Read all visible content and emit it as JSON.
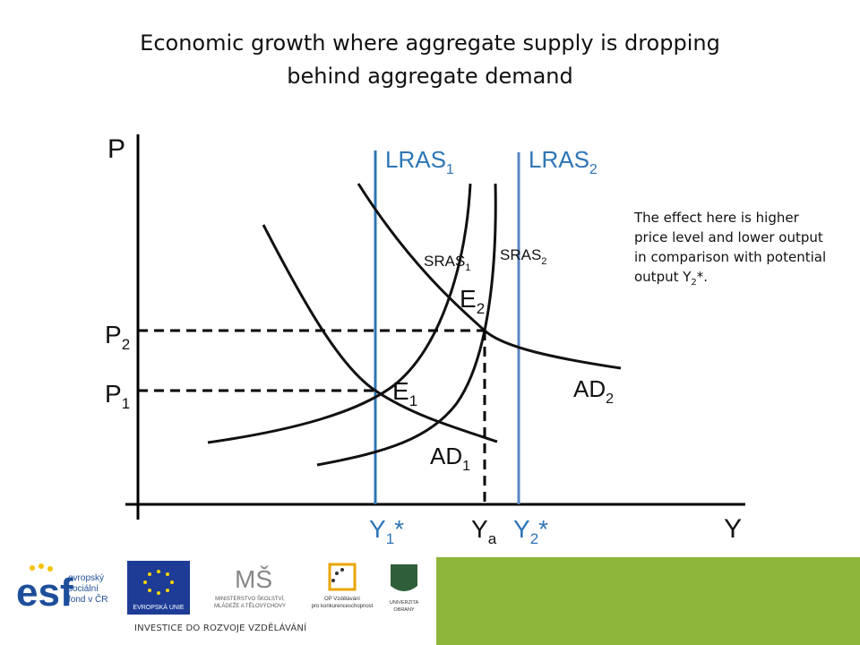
{
  "title_line1": "Economic growth where aggregate supply is dropping",
  "title_line2": "behind aggregate demand",
  "note_text": "The effect here is higher price level and lower output in comparison with potential output Y",
  "note_sub": "2",
  "note_tail": "*.",
  "axes": {
    "y_label": "P",
    "x_label": "Y"
  },
  "curves": {
    "lras1": {
      "name": "LRAS",
      "sub": "1"
    },
    "lras2": {
      "name": "LRAS",
      "sub": "2"
    },
    "sras1": {
      "name": "SRAS",
      "sub": "1"
    },
    "sras2": {
      "name": "SRAS",
      "sub": "2"
    },
    "ad1": {
      "name": "AD",
      "sub": "1"
    },
    "ad2": {
      "name": "AD",
      "sub": "2"
    }
  },
  "points": {
    "e1": {
      "name": "E",
      "sub": "1"
    },
    "e2": {
      "name": "E",
      "sub": "2"
    }
  },
  "price_levels": {
    "p1": {
      "name": "P",
      "sub": "1"
    },
    "p2": {
      "name": "P",
      "sub": "2"
    }
  },
  "outputs": {
    "y1": {
      "name": "Y",
      "sub": "1",
      "tail": "*"
    },
    "ya": {
      "name": "Y",
      "sub": "a"
    },
    "y2": {
      "name": "Y",
      "sub": "2",
      "tail": "*"
    }
  },
  "colors": {
    "axis": "#000000",
    "lras": "#2E75B6",
    "curve": "#111111",
    "footer_green": "#8DB63A"
  },
  "footer": {
    "esf_text": "esf",
    "esf_lines": [
      "evropský",
      "sociální",
      "fond v ČR"
    ],
    "eu_label": "EVROPSKÁ UNIE",
    "msmt_lines": [
      "MINISTERSTVO ŠKOLSTVÍ,",
      "MLÁDEŽE A TĚLOVÝCHOVY"
    ],
    "op_lines": [
      "OP Vzdělávání",
      "pro konkurenceschopnost"
    ],
    "uo_lines": [
      "UNIVERZITA",
      "OBRANY"
    ],
    "invest_text": "INVESTICE DO ROZVOJE VZDĚLÁVÁNÍ"
  }
}
